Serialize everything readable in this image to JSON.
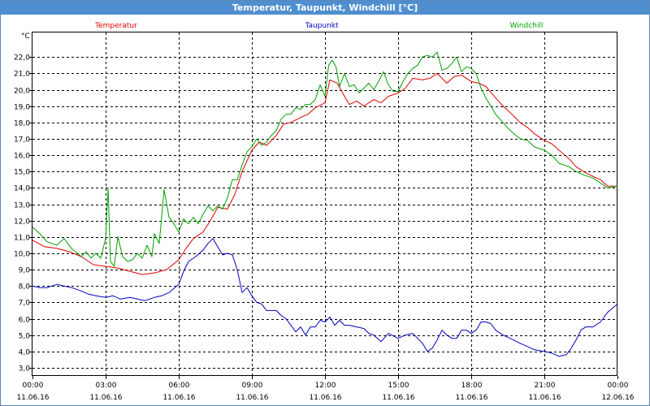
{
  "window": {
    "title": "Temperatur, Taupunkt, Windchill [°C]"
  },
  "chart_data": {
    "type": "line",
    "title": "Temperatur, Taupunkt, Windchill [°C]",
    "ylabel": "°C",
    "ylim": [
      2.5,
      23.5
    ],
    "yticks": [
      3.0,
      4.0,
      5.0,
      6.0,
      7.0,
      8.0,
      9.0,
      10.0,
      11.0,
      12.0,
      13.0,
      14.0,
      15.0,
      16.0,
      17.0,
      18.0,
      19.0,
      20.0,
      21.0,
      22.0
    ],
    "ytick_labels": [
      "3,0",
      "4,0",
      "5,0",
      "6,0",
      "7,0",
      "8,0",
      "9,0",
      "10,0",
      "11,0",
      "12,0",
      "13,0",
      "14,0",
      "15,0",
      "16,0",
      "17,0",
      "18,0",
      "19,0",
      "20,0",
      "21,0",
      "22,0"
    ],
    "xlim": [
      0,
      24
    ],
    "xticks": [
      {
        "x": 0,
        "time": "00:00",
        "date": "11.06.16"
      },
      {
        "x": 3,
        "time": "03:00",
        "date": "11.06.16"
      },
      {
        "x": 6,
        "time": "06:00",
        "date": "11.06.16"
      },
      {
        "x": 9,
        "time": "09:00",
        "date": "11.06.16"
      },
      {
        "x": 12,
        "time": "12:00",
        "date": "11.06.16"
      },
      {
        "x": 15,
        "time": "15:00",
        "date": "11.06.16"
      },
      {
        "x": 18,
        "time": "18:00",
        "date": "11.06.16"
      },
      {
        "x": 21,
        "time": "21:00",
        "date": "11.06.16"
      },
      {
        "x": 24,
        "time": "00:00",
        "date": "12.06.16"
      }
    ],
    "grid": true,
    "series": [
      {
        "name": "Temperatur",
        "color": "#e00000",
        "points": [
          [
            0,
            10.8
          ],
          [
            0.5,
            10.4
          ],
          [
            1,
            10.3
          ],
          [
            1.5,
            10.1
          ],
          [
            2,
            9.8
          ],
          [
            2.5,
            9.3
          ],
          [
            3,
            9.2
          ],
          [
            3.5,
            9.1
          ],
          [
            4,
            8.9
          ],
          [
            4.5,
            8.7
          ],
          [
            5,
            8.8
          ],
          [
            5.5,
            9.0
          ],
          [
            6,
            9.6
          ],
          [
            6.3,
            10.3
          ],
          [
            6.6,
            10.9
          ],
          [
            7,
            11.3
          ],
          [
            7.3,
            12.0
          ],
          [
            7.6,
            12.8
          ],
          [
            8,
            12.7
          ],
          [
            8.3,
            13.6
          ],
          [
            8.6,
            15.0
          ],
          [
            9,
            16.3
          ],
          [
            9.3,
            16.8
          ],
          [
            9.6,
            16.6
          ],
          [
            10,
            17.2
          ],
          [
            10.3,
            17.9
          ],
          [
            10.6,
            18.0
          ],
          [
            11,
            18.3
          ],
          [
            11.3,
            18.5
          ],
          [
            11.6,
            18.9
          ],
          [
            12,
            19.2
          ],
          [
            12.2,
            20.6
          ],
          [
            12.5,
            20.4
          ],
          [
            12.8,
            19.6
          ],
          [
            13,
            19.1
          ],
          [
            13.3,
            19.3
          ],
          [
            13.6,
            19.0
          ],
          [
            14,
            19.4
          ],
          [
            14.3,
            19.2
          ],
          [
            14.6,
            19.6
          ],
          [
            15,
            19.8
          ],
          [
            15.3,
            20.1
          ],
          [
            15.6,
            20.7
          ],
          [
            16,
            20.6
          ],
          [
            16.3,
            20.7
          ],
          [
            16.6,
            21.0
          ],
          [
            17,
            20.4
          ],
          [
            17.3,
            20.8
          ],
          [
            17.6,
            20.9
          ],
          [
            18,
            20.5
          ],
          [
            18.3,
            20.4
          ],
          [
            18.6,
            20.2
          ],
          [
            19,
            19.5
          ],
          [
            19.3,
            19.0
          ],
          [
            19.6,
            18.6
          ],
          [
            20,
            18.0
          ],
          [
            20.3,
            17.7
          ],
          [
            20.6,
            17.3
          ],
          [
            21,
            16.9
          ],
          [
            21.3,
            16.7
          ],
          [
            21.6,
            16.3
          ],
          [
            22,
            15.8
          ],
          [
            22.3,
            15.3
          ],
          [
            22.6,
            15.0
          ],
          [
            23,
            14.7
          ],
          [
            23.3,
            14.5
          ],
          [
            23.6,
            14.1
          ],
          [
            24,
            14.1
          ]
        ]
      },
      {
        "name": "Taupunkt",
        "color": "#0000c0",
        "points": [
          [
            0,
            8.0
          ],
          [
            0.3,
            7.9
          ],
          [
            0.6,
            7.9
          ],
          [
            1,
            8.1
          ],
          [
            1.3,
            8.0
          ],
          [
            1.6,
            7.9
          ],
          [
            2,
            7.7
          ],
          [
            2.3,
            7.5
          ],
          [
            2.6,
            7.4
          ],
          [
            3,
            7.3
          ],
          [
            3.3,
            7.4
          ],
          [
            3.6,
            7.2
          ],
          [
            4,
            7.3
          ],
          [
            4.3,
            7.2
          ],
          [
            4.6,
            7.1
          ],
          [
            5,
            7.3
          ],
          [
            5.3,
            7.4
          ],
          [
            5.6,
            7.6
          ],
          [
            6,
            8.1
          ],
          [
            6.2,
            8.9
          ],
          [
            6.4,
            9.5
          ],
          [
            6.7,
            9.8
          ],
          [
            7,
            10.2
          ],
          [
            7.2,
            10.6
          ],
          [
            7.4,
            10.9
          ],
          [
            7.6,
            10.4
          ],
          [
            7.8,
            9.9
          ],
          [
            8,
            10.0
          ],
          [
            8.2,
            9.9
          ],
          [
            8.4,
            9.0
          ],
          [
            8.6,
            7.6
          ],
          [
            8.8,
            7.9
          ],
          [
            9,
            7.4
          ],
          [
            9.2,
            7.0
          ],
          [
            9.4,
            6.9
          ],
          [
            9.6,
            6.5
          ],
          [
            10,
            6.5
          ],
          [
            10.2,
            6.2
          ],
          [
            10.4,
            6.0
          ],
          [
            10.6,
            5.6
          ],
          [
            10.8,
            5.2
          ],
          [
            11,
            5.5
          ],
          [
            11.2,
            5.0
          ],
          [
            11.4,
            5.5
          ],
          [
            11.6,
            5.5
          ],
          [
            11.8,
            5.9
          ],
          [
            12,
            5.8
          ],
          [
            12.2,
            6.1
          ],
          [
            12.4,
            5.6
          ],
          [
            12.6,
            5.9
          ],
          [
            12.8,
            5.6
          ],
          [
            13,
            5.6
          ],
          [
            13.3,
            5.5
          ],
          [
            13.6,
            5.4
          ],
          [
            13.8,
            5.1
          ],
          [
            14,
            5.0
          ],
          [
            14.3,
            4.6
          ],
          [
            14.6,
            5.1
          ],
          [
            15,
            4.8
          ],
          [
            15.3,
            5.0
          ],
          [
            15.6,
            5.1
          ],
          [
            16,
            4.5
          ],
          [
            16.2,
            4.0
          ],
          [
            16.4,
            4.2
          ],
          [
            16.6,
            4.7
          ],
          [
            16.8,
            5.3
          ],
          [
            17,
            5.0
          ],
          [
            17.2,
            4.8
          ],
          [
            17.4,
            4.8
          ],
          [
            17.6,
            5.3
          ],
          [
            17.8,
            5.3
          ],
          [
            18,
            5.1
          ],
          [
            18.2,
            5.3
          ],
          [
            18.4,
            5.8
          ],
          [
            18.6,
            5.8
          ],
          [
            18.8,
            5.7
          ],
          [
            19,
            5.3
          ],
          [
            19.3,
            5.0
          ],
          [
            19.6,
            4.8
          ],
          [
            20,
            4.5
          ],
          [
            20.3,
            4.3
          ],
          [
            20.6,
            4.1
          ],
          [
            21,
            4.0
          ],
          [
            21.3,
            3.9
          ],
          [
            21.6,
            3.7
          ],
          [
            21.9,
            3.8
          ],
          [
            22.1,
            4.2
          ],
          [
            22.3,
            4.7
          ],
          [
            22.5,
            5.3
          ],
          [
            22.7,
            5.5
          ],
          [
            23,
            5.5
          ],
          [
            23.3,
            5.8
          ],
          [
            23.6,
            6.4
          ],
          [
            24,
            6.9
          ]
        ]
      },
      {
        "name": "Windchill",
        "color": "#00a000",
        "points": [
          [
            0,
            11.6
          ],
          [
            0.3,
            11.2
          ],
          [
            0.6,
            10.7
          ],
          [
            1,
            10.5
          ],
          [
            1.3,
            10.9
          ],
          [
            1.6,
            10.3
          ],
          [
            2,
            9.8
          ],
          [
            2.2,
            10.1
          ],
          [
            2.4,
            9.7
          ],
          [
            2.6,
            10.0
          ],
          [
            2.8,
            9.7
          ],
          [
            3,
            10.9
          ],
          [
            3.1,
            14.0
          ],
          [
            3.2,
            9.5
          ],
          [
            3.35,
            9.2
          ],
          [
            3.5,
            11.0
          ],
          [
            3.7,
            9.8
          ],
          [
            3.9,
            9.5
          ],
          [
            4.1,
            9.6
          ],
          [
            4.3,
            10.0
          ],
          [
            4.5,
            9.7
          ],
          [
            4.7,
            10.5
          ],
          [
            4.9,
            9.8
          ],
          [
            5,
            11.2
          ],
          [
            5.2,
            10.6
          ],
          [
            5.4,
            13.9
          ],
          [
            5.6,
            12.2
          ],
          [
            5.8,
            11.8
          ],
          [
            6,
            11.3
          ],
          [
            6.2,
            12.1
          ],
          [
            6.4,
            11.8
          ],
          [
            6.6,
            12.2
          ],
          [
            6.8,
            11.8
          ],
          [
            7,
            12.4
          ],
          [
            7.2,
            12.9
          ],
          [
            7.4,
            12.6
          ],
          [
            7.6,
            12.9
          ],
          [
            7.8,
            12.7
          ],
          [
            8,
            13.4
          ],
          [
            8.2,
            14.5
          ],
          [
            8.4,
            14.5
          ],
          [
            8.6,
            15.4
          ],
          [
            8.8,
            16.2
          ],
          [
            9,
            16.5
          ],
          [
            9.2,
            17.0
          ],
          [
            9.4,
            16.6
          ],
          [
            9.6,
            16.8
          ],
          [
            9.8,
            17.2
          ],
          [
            10,
            17.5
          ],
          [
            10.2,
            18.2
          ],
          [
            10.4,
            18.5
          ],
          [
            10.6,
            18.5
          ],
          [
            10.8,
            18.9
          ],
          [
            11,
            18.8
          ],
          [
            11.2,
            19.1
          ],
          [
            11.4,
            19.1
          ],
          [
            11.6,
            19.4
          ],
          [
            11.8,
            20.3
          ],
          [
            12,
            19.6
          ],
          [
            12.15,
            21.5
          ],
          [
            12.3,
            21.8
          ],
          [
            12.45,
            21.4
          ],
          [
            12.6,
            20.2
          ],
          [
            12.8,
            21.0
          ],
          [
            13,
            20.2
          ],
          [
            13.2,
            20.3
          ],
          [
            13.4,
            19.8
          ],
          [
            13.6,
            20.1
          ],
          [
            13.8,
            20.4
          ],
          [
            14,
            20.0
          ],
          [
            14.2,
            20.5
          ],
          [
            14.4,
            21.1
          ],
          [
            14.6,
            20.3
          ],
          [
            14.8,
            19.9
          ],
          [
            15,
            19.9
          ],
          [
            15.2,
            20.5
          ],
          [
            15.4,
            21.0
          ],
          [
            15.6,
            21.3
          ],
          [
            15.8,
            21.5
          ],
          [
            16,
            22.0
          ],
          [
            16.2,
            22.1
          ],
          [
            16.4,
            22.0
          ],
          [
            16.6,
            22.3
          ],
          [
            16.8,
            21.2
          ],
          [
            17,
            21.3
          ],
          [
            17.2,
            21.6
          ],
          [
            17.4,
            22.0
          ],
          [
            17.6,
            21.1
          ],
          [
            17.8,
            21.4
          ],
          [
            18,
            21.3
          ],
          [
            18.2,
            21.0
          ],
          [
            18.4,
            20.1
          ],
          [
            18.6,
            19.5
          ],
          [
            18.8,
            19.0
          ],
          [
            19,
            18.5
          ],
          [
            19.3,
            18.0
          ],
          [
            19.6,
            17.5
          ],
          [
            20,
            17.0
          ],
          [
            20.3,
            16.9
          ],
          [
            20.6,
            16.5
          ],
          [
            21,
            16.3
          ],
          [
            21.3,
            16.0
          ],
          [
            21.6,
            15.5
          ],
          [
            22,
            15.3
          ],
          [
            22.3,
            15.0
          ],
          [
            22.6,
            14.8
          ],
          [
            23,
            14.6
          ],
          [
            23.3,
            14.3
          ],
          [
            23.6,
            14.0
          ],
          [
            24,
            14.1
          ]
        ]
      }
    ]
  }
}
